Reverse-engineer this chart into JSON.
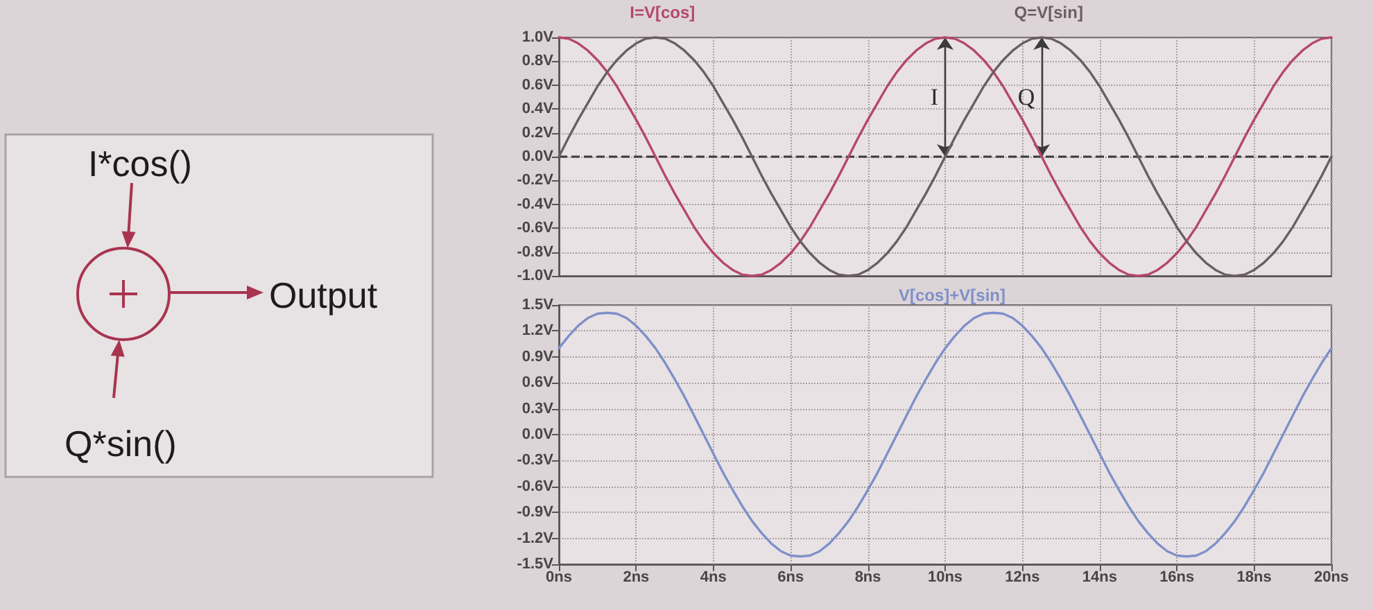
{
  "chart_data": [
    {
      "type": "other",
      "annotations": [
        "I*cos()",
        "Output",
        "Q*sin()"
      ]
    },
    {
      "type": "line",
      "x": [
        0,
        0.25,
        0.5,
        0.75,
        1,
        1.25,
        1.5,
        1.75,
        2,
        2.25,
        2.5,
        2.75,
        3,
        3.25,
        3.5,
        3.75,
        4,
        4.25,
        4.5,
        4.75,
        5,
        5.25,
        5.5,
        5.75,
        6,
        6.25,
        6.5,
        6.75,
        7,
        7.25,
        7.5,
        7.75,
        8,
        8.25,
        8.5,
        8.75,
        9,
        9.25,
        9.5,
        9.75,
        10,
        10.25,
        10.5,
        10.75,
        11,
        11.25,
        11.5,
        11.75,
        12,
        12.25,
        12.5,
        12.75,
        13,
        13.25,
        13.5,
        13.75,
        14,
        14.25,
        14.5,
        14.75,
        15,
        15.25,
        15.5,
        15.75,
        16,
        16.25,
        16.5,
        16.75,
        17,
        17.25,
        17.5,
        17.75,
        18,
        18.25,
        18.5,
        18.75,
        19,
        19.25,
        19.5,
        19.75,
        20
      ],
      "series": [
        {
          "name": "I=V[cos]",
          "color": "#b5476f",
          "values": [
            1,
            0.99,
            0.95,
            0.89,
            0.81,
            0.71,
            0.59,
            0.45,
            0.31,
            0.16,
            0,
            -0.16,
            -0.31,
            -0.45,
            -0.59,
            -0.71,
            -0.81,
            -0.89,
            -0.95,
            -0.99,
            -1,
            -0.99,
            -0.95,
            -0.89,
            -0.81,
            -0.71,
            -0.59,
            -0.45,
            -0.31,
            -0.16,
            0,
            0.16,
            0.31,
            0.45,
            0.59,
            0.71,
            0.81,
            0.89,
            0.95,
            0.99,
            1,
            0.99,
            0.95,
            0.89,
            0.81,
            0.71,
            0.59,
            0.45,
            0.31,
            0.16,
            0,
            -0.16,
            -0.31,
            -0.45,
            -0.59,
            -0.71,
            -0.81,
            -0.89,
            -0.95,
            -0.99,
            -1,
            -0.99,
            -0.95,
            -0.89,
            -0.81,
            -0.71,
            -0.59,
            -0.45,
            -0.31,
            -0.16,
            0,
            0.16,
            0.31,
            0.45,
            0.59,
            0.71,
            0.81,
            0.89,
            0.95,
            0.99,
            1
          ]
        },
        {
          "name": "Q=V[sin]",
          "color": "#6b5e63",
          "values": [
            0,
            0.16,
            0.31,
            0.45,
            0.59,
            0.71,
            0.81,
            0.89,
            0.95,
            0.99,
            1,
            0.99,
            0.95,
            0.89,
            0.81,
            0.71,
            0.59,
            0.45,
            0.31,
            0.16,
            0,
            -0.16,
            -0.31,
            -0.45,
            -0.59,
            -0.71,
            -0.81,
            -0.89,
            -0.95,
            -0.99,
            -1,
            -0.99,
            -0.95,
            -0.89,
            -0.81,
            -0.71,
            -0.59,
            -0.45,
            -0.31,
            -0.16,
            0,
            0.16,
            0.31,
            0.45,
            0.59,
            0.71,
            0.81,
            0.89,
            0.95,
            0.99,
            1,
            0.99,
            0.95,
            0.89,
            0.81,
            0.71,
            0.59,
            0.45,
            0.31,
            0.16,
            0,
            -0.16,
            -0.31,
            -0.45,
            -0.59,
            -0.71,
            -0.81,
            -0.89,
            -0.95,
            -0.99,
            -1,
            -0.99,
            -0.95,
            -0.89,
            -0.81,
            -0.71,
            -0.59,
            -0.45,
            -0.31,
            -0.16,
            0
          ]
        }
      ],
      "xlim": [
        0,
        20
      ],
      "xticks": [
        0,
        2,
        4,
        6,
        8,
        10,
        12,
        14,
        16,
        18,
        20
      ],
      "ylim": [
        -1,
        1
      ],
      "yticks": [
        {
          "value": -1,
          "label": "-1.0V"
        },
        {
          "value": -0.8,
          "label": "-0.8V"
        },
        {
          "value": -0.6,
          "label": "-0.6V"
        },
        {
          "value": -0.4,
          "label": "-0.4V"
        },
        {
          "value": -0.2,
          "label": "-0.2V"
        },
        {
          "value": 0,
          "label": "0.0V"
        },
        {
          "value": 0.2,
          "label": "0.2V"
        },
        {
          "value": 0.4,
          "label": "0.4V"
        },
        {
          "value": 0.6,
          "label": "0.6V"
        },
        {
          "value": 0.8,
          "label": "0.8V"
        },
        {
          "value": 1,
          "label": "1.0V"
        }
      ],
      "ref_lines": [
        {
          "axis": "y",
          "value": 0,
          "color": "#3c3a3b",
          "line_style": "dashed"
        }
      ],
      "annotations": [
        {
          "text": "I",
          "x": 10,
          "y": 1
        },
        {
          "text": "Q",
          "x": 12.5,
          "y": 1
        }
      ],
      "tick_labels": "y",
      "grid": true,
      "legend": "top",
      "marker": "none"
    },
    {
      "type": "line",
      "x": [
        0,
        0.25,
        0.5,
        0.75,
        1,
        1.25,
        1.5,
        1.75,
        2,
        2.25,
        2.5,
        2.75,
        3,
        3.25,
        3.5,
        3.75,
        4,
        4.25,
        4.5,
        4.75,
        5,
        5.25,
        5.5,
        5.75,
        6,
        6.25,
        6.5,
        6.75,
        7,
        7.25,
        7.5,
        7.75,
        8,
        8.25,
        8.5,
        8.75,
        9,
        9.25,
        9.5,
        9.75,
        10,
        10.25,
        10.5,
        10.75,
        11,
        11.25,
        11.5,
        11.75,
        12,
        12.25,
        12.5,
        12.75,
        13,
        13.25,
        13.5,
        13.75,
        14,
        14.25,
        14.5,
        14.75,
        15,
        15.25,
        15.5,
        15.75,
        16,
        16.25,
        16.5,
        16.75,
        17,
        17.25,
        17.5,
        17.75,
        18,
        18.25,
        18.5,
        18.75,
        19,
        19.25,
        19.5,
        19.75,
        20
      ],
      "series": [
        {
          "name": "V[cos]+V[sin]",
          "color": "#7e90c8",
          "values": [
            1,
            1.14,
            1.26,
            1.35,
            1.4,
            1.41,
            1.4,
            1.35,
            1.26,
            1.14,
            1,
            0.83,
            0.64,
            0.44,
            0.22,
            0,
            -0.22,
            -0.44,
            -0.64,
            -0.83,
            -1,
            -1.14,
            -1.26,
            -1.35,
            -1.4,
            -1.41,
            -1.4,
            -1.35,
            -1.26,
            -1.14,
            -1,
            -0.83,
            -0.64,
            -0.44,
            -0.22,
            0,
            0.22,
            0.44,
            0.64,
            0.83,
            1,
            1.14,
            1.26,
            1.35,
            1.4,
            1.41,
            1.4,
            1.35,
            1.26,
            1.14,
            1,
            0.83,
            0.64,
            0.44,
            0.22,
            0,
            -0.22,
            -0.44,
            -0.64,
            -0.83,
            -1,
            -1.14,
            -1.26,
            -1.35,
            -1.4,
            -1.41,
            -1.4,
            -1.35,
            -1.26,
            -1.14,
            -1,
            -0.83,
            -0.64,
            -0.44,
            -0.22,
            0,
            0.22,
            0.44,
            0.64,
            0.83,
            1
          ]
        }
      ],
      "xlim": [
        0,
        20
      ],
      "xticks": [
        {
          "value": 0,
          "label": "0ns"
        },
        {
          "value": 2,
          "label": "2ns"
        },
        {
          "value": 4,
          "label": "4ns"
        },
        {
          "value": 6,
          "label": "6ns"
        },
        {
          "value": 8,
          "label": "8ns"
        },
        {
          "value": 10,
          "label": "10ns"
        },
        {
          "value": 12,
          "label": "12ns"
        },
        {
          "value": 14,
          "label": "14ns"
        },
        {
          "value": 16,
          "label": "16ns"
        },
        {
          "value": 18,
          "label": "18ns"
        },
        {
          "value": 20,
          "label": "20ns"
        }
      ],
      "ylim": [
        -1.5,
        1.5
      ],
      "yticks": [
        {
          "value": -1.5,
          "label": "-1.5V"
        },
        {
          "value": -1.2,
          "label": "-1.2V"
        },
        {
          "value": -0.9,
          "label": "-0.9V"
        },
        {
          "value": -0.6,
          "label": "-0.6V"
        },
        {
          "value": -0.3,
          "label": "-0.3V"
        },
        {
          "value": 0,
          "label": "0.0V"
        },
        {
          "value": 0.3,
          "label": "0.3V"
        },
        {
          "value": 0.6,
          "label": "0.6V"
        },
        {
          "value": 0.9,
          "label": "0.9V"
        },
        {
          "value": 1.2,
          "label": "1.2V"
        },
        {
          "value": 1.5,
          "label": "1.5V"
        }
      ],
      "grid": true,
      "legend": "top",
      "marker": "none"
    }
  ]
}
